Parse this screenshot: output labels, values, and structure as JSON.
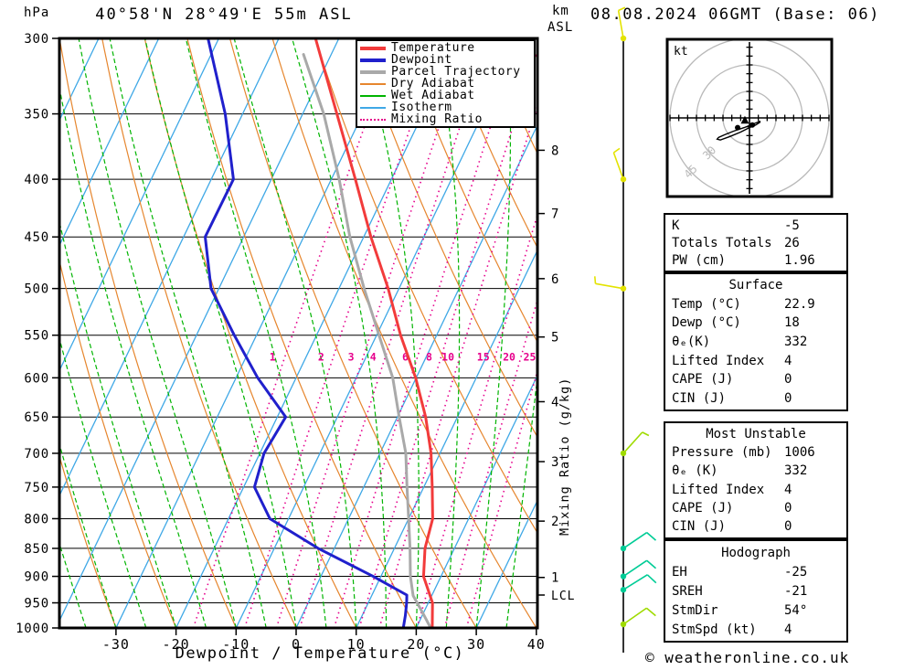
{
  "header": {
    "station_title": "40°58'N 28°49'E 55m ASL",
    "datetime": "08.08.2024 06GMT (Base: 06)",
    "pressure_unit": "hPa",
    "km_line1": "km",
    "km_line2": "ASL"
  },
  "footer": {
    "copyright": "© weatheronline.co.uk"
  },
  "axes": {
    "x_title": "Dewpoint / Temperature (°C)",
    "mixing_axis_title": "Mixing Ratio (g/kg)"
  },
  "legend": {
    "items": [
      {
        "label": "Temperature",
        "color": "#f23b3b",
        "thick": 4,
        "dotted": false
      },
      {
        "label": "Dewpoint",
        "color": "#2020cc",
        "thick": 4,
        "dotted": false
      },
      {
        "label": "Parcel Trajectory",
        "color": "#a9a9a9",
        "thick": 4,
        "dotted": false
      },
      {
        "label": "Dry Adiabat",
        "color": "#e6862e",
        "thick": 2,
        "dotted": false
      },
      {
        "label": "Wet Adiabat",
        "color": "#00b400",
        "thick": 2,
        "dotted": false
      },
      {
        "label": "Isotherm",
        "color": "#3fa8e6",
        "thick": 2,
        "dotted": false
      },
      {
        "label": "Mixing Ratio",
        "color": "#e6008c",
        "thick": 2,
        "dotted": true
      }
    ]
  },
  "panels": [
    {
      "title": null,
      "rows": [
        [
          "K",
          "-5"
        ],
        [
          "Totals Totals",
          "26"
        ],
        [
          "PW (cm)",
          "1.96"
        ]
      ]
    },
    {
      "title": "Surface",
      "rows": [
        [
          "Temp (°C)",
          "22.9"
        ],
        [
          "Dewp (°C)",
          "18"
        ],
        [
          "θₑ(K)",
          "332"
        ],
        [
          "Lifted Index",
          "4"
        ],
        [
          "CAPE (J)",
          "0"
        ],
        [
          "CIN (J)",
          "0"
        ]
      ]
    },
    {
      "title": "Most Unstable",
      "rows": [
        [
          "Pressure (mb)",
          "1006"
        ],
        [
          "θₑ (K)",
          "332"
        ],
        [
          "Lifted Index",
          "4"
        ],
        [
          "CAPE (J)",
          "0"
        ],
        [
          "CIN (J)",
          "0"
        ]
      ]
    },
    {
      "title": "Hodograph",
      "rows": [
        [
          "EH",
          "-25"
        ],
        [
          "SREH",
          "-21"
        ],
        [
          "StmDir",
          "54°"
        ],
        [
          "StmSpd (kt)",
          "4"
        ]
      ]
    }
  ],
  "chart_data": {
    "type": "skewt-logp",
    "pressure_axis": {
      "unit": "hPa",
      "range": [
        300,
        1000
      ],
      "ticks": [
        300,
        350,
        400,
        450,
        500,
        550,
        600,
        650,
        700,
        750,
        800,
        850,
        900,
        950,
        1000
      ]
    },
    "temp_axis": {
      "unit": "°C",
      "range_at_surface": [
        -40,
        40
      ],
      "ticks": [
        -30,
        -20,
        -10,
        0,
        10,
        20,
        30,
        40
      ]
    },
    "km_axis": {
      "unit": "km ASL",
      "ticks": [
        {
          "label": "8",
          "p": 377
        },
        {
          "label": "7",
          "p": 429
        },
        {
          "label": "6",
          "p": 490
        },
        {
          "label": "5",
          "p": 552
        },
        {
          "label": "4",
          "p": 630
        },
        {
          "label": "3",
          "p": 712
        },
        {
          "label": "2",
          "p": 804
        },
        {
          "label": "1",
          "p": 902
        }
      ],
      "lcl": {
        "label": "LCL",
        "p": 935
      }
    },
    "background": {
      "isotherms_c": {
        "start": -120,
        "end": 40,
        "step": 10
      },
      "dry_adiabats_c": {
        "start": -40,
        "end": 110,
        "step": 10
      },
      "wet_adiabats_c": {
        "start": -55,
        "end": 35,
        "step": 5
      },
      "mixing_ratio_gkg": [
        1,
        2,
        3,
        4,
        6,
        8,
        10,
        15,
        20,
        25
      ],
      "mixing_label_p": 586
    },
    "sounding": {
      "temperature_c": [
        [
          1006,
          22.9
        ],
        [
          950,
          20.7
        ],
        [
          900,
          17.1
        ],
        [
          850,
          15.1
        ],
        [
          800,
          14.0
        ],
        [
          750,
          11.4
        ],
        [
          700,
          8.5
        ],
        [
          650,
          4.7
        ],
        [
          600,
          -0.1
        ],
        [
          550,
          -6.0
        ],
        [
          500,
          -11.8
        ],
        [
          450,
          -18.8
        ],
        [
          400,
          -26.0
        ],
        [
          350,
          -34.3
        ],
        [
          300,
          -43.9
        ]
      ],
      "dewpoint_c": [
        [
          1006,
          18
        ],
        [
          975,
          17.2
        ],
        [
          950,
          16.4
        ],
        [
          935,
          15.8
        ],
        [
          900,
          8.7
        ],
        [
          850,
          -2.7
        ],
        [
          800,
          -13.1
        ],
        [
          750,
          -18.2
        ],
        [
          700,
          -19.3
        ],
        [
          650,
          -18.6
        ],
        [
          600,
          -26.4
        ],
        [
          550,
          -33.7
        ],
        [
          500,
          -41.3
        ],
        [
          450,
          -46.4
        ],
        [
          400,
          -46.3
        ],
        [
          350,
          -52.9
        ],
        [
          300,
          -61.8
        ]
      ],
      "parcel_c": [
        [
          1006,
          22.9
        ],
        [
          970,
          19.9
        ],
        [
          936,
          16.9
        ],
        [
          900,
          14.9
        ],
        [
          850,
          12.6
        ],
        [
          800,
          10.0
        ],
        [
          750,
          7.2
        ],
        [
          700,
          4.3
        ],
        [
          650,
          0.3
        ],
        [
          600,
          -3.9
        ],
        [
          550,
          -9.6
        ],
        [
          500,
          -15.8
        ],
        [
          450,
          -22.3
        ],
        [
          400,
          -28.7
        ],
        [
          350,
          -36.5
        ],
        [
          310,
          -44.6
        ]
      ]
    },
    "wind_barbs": [
      {
        "p": 300,
        "dir_deg": 350,
        "speed_kt": 5,
        "color": "#e3e300"
      },
      {
        "p": 400,
        "dir_deg": 340,
        "speed_kt": 5,
        "color": "#e3e300"
      },
      {
        "p": 500,
        "dir_deg": 280,
        "speed_kt": 5,
        "color": "#e3e300"
      },
      {
        "p": 700,
        "dir_deg": 42,
        "speed_kt": 5,
        "color": "#9fdb00"
      },
      {
        "p": 850,
        "dir_deg": 56,
        "speed_kt": 10,
        "color": "#00cc96"
      },
      {
        "p": 900,
        "dir_deg": 56,
        "speed_kt": 10,
        "color": "#00cc96"
      },
      {
        "p": 925,
        "dir_deg": 58,
        "speed_kt": 10,
        "color": "#00cc96"
      },
      {
        "p": 1000,
        "dir_deg": 55,
        "speed_kt": 10,
        "color": "#9fdb00"
      }
    ],
    "hodograph": {
      "unit": "kt",
      "rings_kt": [
        15,
        30,
        45
      ],
      "diagonal_ring_labels": [
        "30",
        "45"
      ],
      "trace_uv_kt": [
        [
          6.2,
          -1.8
        ],
        [
          1.6,
          -3.6
        ],
        [
          -3,
          -5.5
        ],
        [
          -9,
          -7.5
        ],
        [
          -14,
          -9.5
        ],
        [
          -17.5,
          -11
        ],
        [
          -18.3,
          -12
        ],
        [
          -16.5,
          -12.5
        ],
        [
          -11,
          -10.5
        ],
        [
          -5,
          -8
        ],
        [
          0,
          -5.5
        ],
        [
          3.5,
          -4
        ],
        [
          6.2,
          -2.3
        ]
      ],
      "dots_uv_kt": [
        [
          -6.7,
          -5.5
        ],
        [
          1.6,
          -4.0
        ]
      ],
      "storm_motion_uv_kt": [
        -2.6,
        -1.4
      ],
      "storm_dir_deg": 54,
      "storm_speed_kt": 4
    },
    "colors": {
      "temperature": "#f23b3b",
      "dewpoint": "#2020cc",
      "parcel": "#a9a9a9",
      "dry_adiabat": "#e6862e",
      "wet_adiabat": "#00b400",
      "isotherm": "#3fa8e6",
      "mixing_ratio": "#e6008c",
      "grid": "#000000",
      "hodo_ring": "#b9b9b9"
    }
  }
}
